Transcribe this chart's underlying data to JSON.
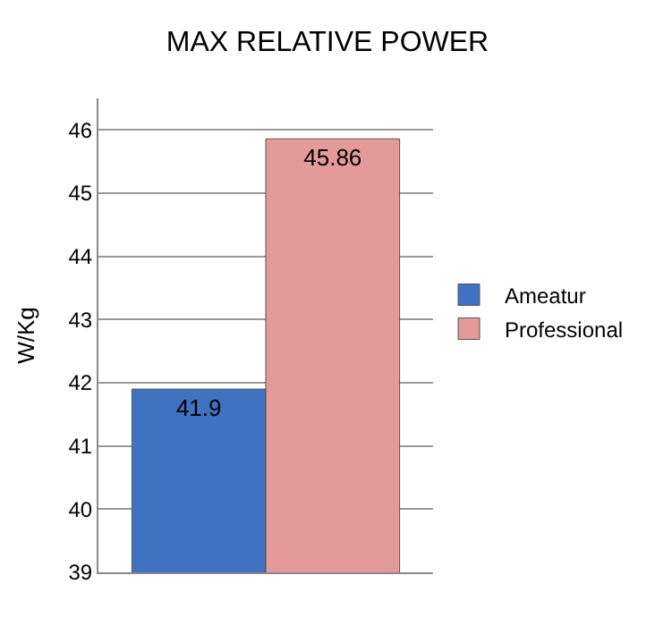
{
  "chart_data": {
    "type": "bar",
    "title": "MAX RELATIVE POWER",
    "ylabel": "W/Kg",
    "categories": [
      null
    ],
    "series": [
      {
        "name": "Ameatur",
        "color": "#3f72c0",
        "values": [
          41.9
        ]
      },
      {
        "name": "Professional",
        "color": "#e49a98",
        "values": [
          45.86
        ]
      }
    ],
    "ylim": [
      39,
      46.5
    ],
    "yticks": [
      39,
      40,
      41,
      42,
      43,
      44,
      45,
      46
    ],
    "grid": "y",
    "legend": "right",
    "data_labels": true
  }
}
